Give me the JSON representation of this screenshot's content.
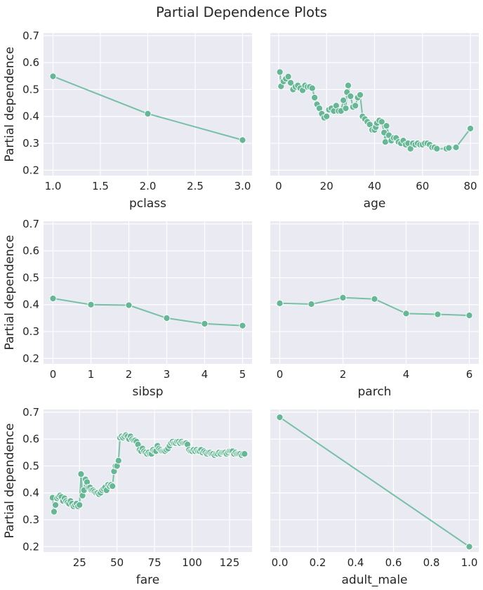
{
  "figure": {
    "title": "Partial Dependence Plots",
    "ylabel": "Partial dependence",
    "background_color": "#eaeaf2",
    "grid_color": "#ffffff",
    "line_color": "#76c1a5",
    "marker_color": "#66b796",
    "shared_ylim": [
      0.18,
      0.71
    ],
    "shared_yticks": [
      "0.2",
      "0.3",
      "0.4",
      "0.5",
      "0.6",
      "0.7"
    ],
    "grid": true
  },
  "chart_data": [
    {
      "type": "line",
      "xlabel": "pclass",
      "ylabel": "Partial dependence",
      "xlim": [
        0.9,
        3.1
      ],
      "xticks": [
        1.0,
        1.5,
        2.0,
        2.5,
        3.0
      ],
      "xtick_labels": [
        "1.0",
        "1.5",
        "2.0",
        "2.5",
        "3.0"
      ],
      "ylim": [
        0.18,
        0.71
      ],
      "x": [
        1,
        2,
        3
      ],
      "y": [
        0.549,
        0.41,
        0.312
      ]
    },
    {
      "type": "line",
      "xlabel": "age",
      "ylabel": "",
      "xlim": [
        -3.5,
        83.5
      ],
      "xticks": [
        0,
        20,
        40,
        60,
        80
      ],
      "xtick_labels": [
        "0",
        "20",
        "40",
        "60",
        "80"
      ],
      "ylim": [
        0.18,
        0.71
      ],
      "x": [
        0.5,
        1,
        2,
        3,
        4,
        5,
        6,
        7,
        8,
        9,
        10,
        11,
        12,
        13,
        14,
        15,
        16,
        17,
        18,
        19,
        20,
        21,
        22,
        23,
        24,
        25,
        26,
        27,
        28,
        28.5,
        29,
        30,
        31,
        32,
        33,
        34,
        35,
        36,
        37,
        38,
        39,
        40,
        40.5,
        41,
        42,
        43,
        44,
        44.5,
        45,
        46,
        47,
        48,
        49,
        50,
        51,
        52,
        53,
        54,
        55,
        56,
        57,
        58,
        59,
        60,
        61,
        62,
        63,
        64,
        65,
        66,
        70,
        71,
        74,
        80
      ],
      "y": [
        0.565,
        0.512,
        0.53,
        0.54,
        0.548,
        0.525,
        0.5,
        0.51,
        0.515,
        0.505,
        0.497,
        0.515,
        0.51,
        0.51,
        0.505,
        0.47,
        0.445,
        0.43,
        0.41,
        0.395,
        0.4,
        0.425,
        0.43,
        0.42,
        0.44,
        0.42,
        0.42,
        0.46,
        0.43,
        0.49,
        0.515,
        0.475,
        0.435,
        0.44,
        0.47,
        0.48,
        0.4,
        0.39,
        0.38,
        0.37,
        0.35,
        0.35,
        0.36,
        0.375,
        0.385,
        0.38,
        0.34,
        0.305,
        0.365,
        0.33,
        0.31,
        0.32,
        0.32,
        0.305,
        0.3,
        0.31,
        0.295,
        0.3,
        0.28,
        0.3,
        0.295,
        0.3,
        0.295,
        0.295,
        0.3,
        0.3,
        0.295,
        0.285,
        0.285,
        0.28,
        0.28,
        0.283,
        0.285,
        0.355
      ]
    },
    {
      "type": "line",
      "xlabel": "sibsp",
      "ylabel": "Partial dependence",
      "xlim": [
        -0.25,
        5.25
      ],
      "xticks": [
        0,
        1,
        2,
        3,
        4,
        5
      ],
      "xtick_labels": [
        "0",
        "1",
        "2",
        "3",
        "4",
        "5"
      ],
      "ylim": [
        0.18,
        0.71
      ],
      "x": [
        0,
        1,
        2,
        3,
        4,
        5
      ],
      "y": [
        0.423,
        0.4,
        0.398,
        0.35,
        0.329,
        0.322
      ]
    },
    {
      "type": "line",
      "xlabel": "parch",
      "ylabel": "",
      "xlim": [
        -0.3,
        6.3
      ],
      "xticks": [
        0,
        2,
        4,
        6
      ],
      "xtick_labels": [
        "0",
        "2",
        "4",
        "6"
      ],
      "ylim": [
        0.18,
        0.71
      ],
      "x": [
        0,
        1,
        2,
        3,
        4,
        5,
        6
      ],
      "y": [
        0.405,
        0.402,
        0.426,
        0.421,
        0.367,
        0.364,
        0.36
      ]
    },
    {
      "type": "line",
      "xlabel": "fare",
      "ylabel": "Partial dependence",
      "xlim": [
        1,
        140
      ],
      "xticks": [
        25,
        50,
        75,
        100,
        125
      ],
      "xtick_labels": [
        "25",
        "50",
        "75",
        "100",
        "125"
      ],
      "ylim": [
        0.18,
        0.71
      ],
      "x": [
        7,
        8,
        9,
        10,
        11,
        12,
        13,
        14,
        15,
        16,
        17,
        18,
        19,
        20,
        21,
        22,
        23,
        24,
        25,
        26,
        27,
        28,
        29,
        30,
        31,
        32,
        33,
        34,
        35,
        36,
        37,
        38,
        39,
        40,
        41,
        42,
        43,
        44,
        45,
        46,
        47,
        48,
        49,
        50,
        51,
        52,
        53,
        54,
        55,
        56,
        57,
        58,
        59,
        60,
        61,
        62,
        63,
        64,
        65,
        66,
        67,
        68,
        69,
        70,
        71,
        72,
        73,
        74,
        75,
        76,
        77,
        78,
        79,
        80,
        81,
        82,
        83,
        84,
        85,
        86,
        87,
        88,
        89,
        90,
        91,
        92,
        93,
        94,
        95,
        96,
        97,
        98,
        99,
        100,
        101,
        102,
        103,
        104,
        105,
        106,
        107,
        108,
        109,
        110,
        111,
        112,
        113,
        114,
        115,
        116,
        117,
        118,
        119,
        120,
        121,
        122,
        123,
        124,
        125,
        126,
        127,
        128,
        129,
        130,
        131,
        132,
        133,
        134,
        135
      ],
      "y": [
        0.382,
        0.33,
        0.355,
        0.38,
        0.385,
        0.39,
        0.385,
        0.37,
        0.38,
        0.37,
        0.365,
        0.36,
        0.37,
        0.36,
        0.35,
        0.355,
        0.36,
        0.35,
        0.355,
        0.47,
        0.39,
        0.41,
        0.45,
        0.44,
        0.42,
        0.42,
        0.41,
        0.41,
        0.405,
        0.4,
        0.4,
        0.395,
        0.4,
        0.41,
        0.415,
        0.42,
        0.41,
        0.43,
        0.425,
        0.43,
        0.425,
        0.48,
        0.5,
        0.5,
        0.52,
        0.605,
        0.61,
        0.605,
        0.61,
        0.615,
        0.61,
        0.6,
        0.61,
        0.6,
        0.595,
        0.595,
        0.59,
        0.58,
        0.56,
        0.555,
        0.565,
        0.555,
        0.55,
        0.545,
        0.55,
        0.545,
        0.545,
        0.56,
        0.555,
        0.555,
        0.575,
        0.565,
        0.56,
        0.555,
        0.555,
        0.555,
        0.56,
        0.565,
        0.575,
        0.585,
        0.59,
        0.585,
        0.585,
        0.59,
        0.59,
        0.585,
        0.59,
        0.585,
        0.585,
        0.585,
        0.58,
        0.56,
        0.555,
        0.555,
        0.56,
        0.555,
        0.56,
        0.555,
        0.555,
        0.56,
        0.55,
        0.555,
        0.55,
        0.545,
        0.55,
        0.55,
        0.545,
        0.545,
        0.54,
        0.545,
        0.545,
        0.55,
        0.545,
        0.55,
        0.55,
        0.55,
        0.545,
        0.55,
        0.555,
        0.555,
        0.555,
        0.545,
        0.55,
        0.545,
        0.545,
        0.545,
        0.54,
        0.545,
        0.545
      ]
    },
    {
      "type": "line",
      "xlabel": "adult_male",
      "ylabel": "",
      "xlim": [
        -0.05,
        1.05
      ],
      "xticks": [
        0.0,
        0.2,
        0.4,
        0.6,
        0.8,
        1.0
      ],
      "xtick_labels": [
        "0.0",
        "0.2",
        "0.4",
        "0.6",
        "0.8",
        "1.0"
      ],
      "ylim": [
        0.18,
        0.71
      ],
      "x": [
        0,
        1
      ],
      "y": [
        0.681,
        0.2
      ]
    }
  ]
}
